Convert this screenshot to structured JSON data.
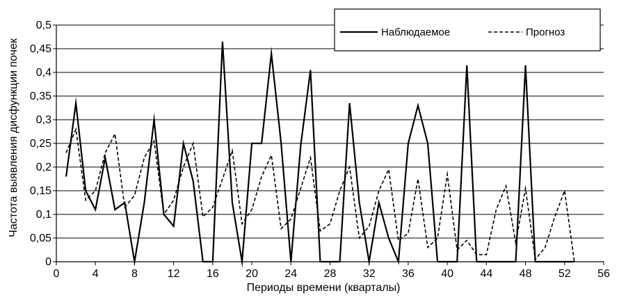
{
  "chart_data": {
    "type": "line",
    "xlabel": "Периоды времени (кварталы)",
    "ylabel": "Частота выявления дисфункции почек",
    "xlim": [
      0,
      56
    ],
    "ylim": [
      0,
      0.5
    ],
    "x_ticks": [
      0,
      4,
      8,
      12,
      16,
      20,
      24,
      28,
      32,
      36,
      40,
      44,
      48,
      52,
      56
    ],
    "y_ticks": [
      0,
      0.05,
      0.1,
      0.15,
      0.2,
      0.25,
      0.3,
      0.35,
      0.4,
      0.45,
      0.5
    ],
    "x_tick_labels": [
      "0",
      "4",
      "8",
      "12",
      "16",
      "20",
      "24",
      "28",
      "32",
      "36",
      "40",
      "44",
      "48",
      "52",
      "56"
    ],
    "y_tick_labels": [
      "0",
      "0,05",
      "0,1",
      "0,15",
      "0,2",
      "0,25",
      "0,3",
      "0,35",
      "0,4",
      "0,45",
      "0,5"
    ],
    "grid": "horizontal",
    "legend_position": "top-right",
    "series": [
      {
        "name": "Наблюдаемое",
        "style": "solid",
        "color": "#000000",
        "points": [
          [
            1,
            0.18
          ],
          [
            2,
            0.335
          ],
          [
            3,
            0.15
          ],
          [
            4,
            0.11
          ],
          [
            5,
            0.22
          ],
          [
            6,
            0.11
          ],
          [
            7,
            0.125
          ],
          [
            8,
            0.0
          ],
          [
            9,
            0.125
          ],
          [
            10,
            0.3
          ],
          [
            11,
            0.1
          ],
          [
            12,
            0.075
          ],
          [
            13,
            0.25
          ],
          [
            14,
            0.17
          ],
          [
            15,
            0.0
          ],
          [
            16,
            0.0
          ],
          [
            17,
            0.465
          ],
          [
            18,
            0.125
          ],
          [
            19,
            0.0
          ],
          [
            20,
            0.25
          ],
          [
            21,
            0.25
          ],
          [
            22,
            0.44
          ],
          [
            23,
            0.25
          ],
          [
            24,
            0.0
          ],
          [
            25,
            0.245
          ],
          [
            26,
            0.405
          ],
          [
            27,
            0.0
          ],
          [
            28,
            0.0
          ],
          [
            29,
            0.0
          ],
          [
            30,
            0.335
          ],
          [
            31,
            0.125
          ],
          [
            32,
            0.0
          ],
          [
            33,
            0.125
          ],
          [
            34,
            0.05
          ],
          [
            35,
            0.0
          ],
          [
            36,
            0.25
          ],
          [
            37,
            0.33
          ],
          [
            38,
            0.25
          ],
          [
            39,
            0.0
          ],
          [
            40,
            0.0
          ],
          [
            41,
            0.0
          ],
          [
            42,
            0.415
          ],
          [
            43,
            0.0
          ],
          [
            44,
            0.0
          ],
          [
            45,
            0.0
          ],
          [
            46,
            0.0
          ],
          [
            47,
            0.0
          ],
          [
            48,
            0.415
          ],
          [
            49,
            0.0
          ],
          [
            50,
            0.0
          ],
          [
            51,
            0.0
          ],
          [
            52,
            0.0
          ],
          [
            53,
            0.0
          ]
        ]
      },
      {
        "name": "Прогноз",
        "style": "dashed",
        "color": "#000000",
        "points": [
          [
            1,
            0.23
          ],
          [
            2,
            0.28
          ],
          [
            3,
            0.13
          ],
          [
            4,
            0.15
          ],
          [
            5,
            0.23
          ],
          [
            6,
            0.27
          ],
          [
            7,
            0.115
          ],
          [
            8,
            0.14
          ],
          [
            9,
            0.22
          ],
          [
            10,
            0.255
          ],
          [
            11,
            0.1
          ],
          [
            12,
            0.13
          ],
          [
            13,
            0.2
          ],
          [
            14,
            0.25
          ],
          [
            15,
            0.095
          ],
          [
            16,
            0.115
          ],
          [
            17,
            0.175
          ],
          [
            18,
            0.235
          ],
          [
            19,
            0.08
          ],
          [
            20,
            0.11
          ],
          [
            21,
            0.18
          ],
          [
            22,
            0.225
          ],
          [
            23,
            0.07
          ],
          [
            24,
            0.09
          ],
          [
            25,
            0.155
          ],
          [
            26,
            0.22
          ],
          [
            27,
            0.065
          ],
          [
            28,
            0.08
          ],
          [
            29,
            0.15
          ],
          [
            30,
            0.2
          ],
          [
            31,
            0.05
          ],
          [
            32,
            0.075
          ],
          [
            33,
            0.15
          ],
          [
            34,
            0.195
          ],
          [
            35,
            0.045
          ],
          [
            36,
            0.06
          ],
          [
            37,
            0.175
          ],
          [
            38,
            0.03
          ],
          [
            39,
            0.05
          ],
          [
            40,
            0.185
          ],
          [
            41,
            0.025
          ],
          [
            42,
            0.045
          ],
          [
            43,
            0.015
          ],
          [
            44,
            0.015
          ],
          [
            45,
            0.11
          ],
          [
            46,
            0.16
          ],
          [
            47,
            0.04
          ],
          [
            48,
            0.155
          ],
          [
            49,
            0.005
          ],
          [
            50,
            0.03
          ],
          [
            51,
            0.095
          ],
          [
            52,
            0.15
          ],
          [
            53,
            0.0
          ]
        ]
      }
    ]
  }
}
